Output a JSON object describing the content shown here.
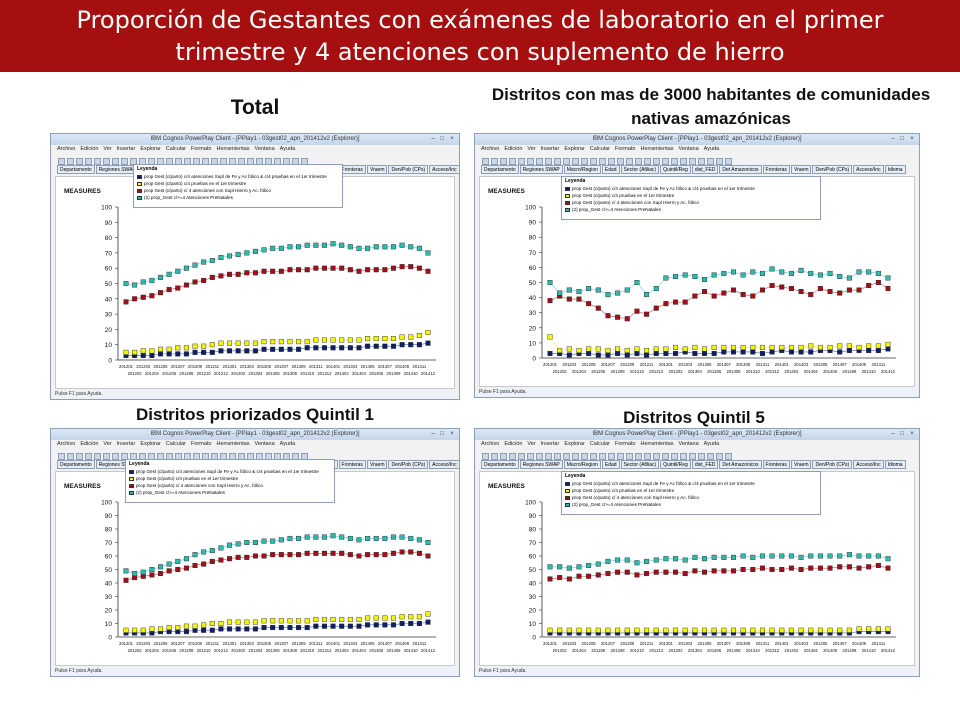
{
  "header": {
    "title_line1": "Proporción de Gestantes con exámenes de laboratorio en el primer",
    "title_line2": "trimestre y 4 atenciones con suplemento de hierro"
  },
  "colors": {
    "banner": "#a50f0f",
    "s1": "#0d1f66",
    "s2": "#f2f20d",
    "s3": "#a01018",
    "s4": "#2eb8ae"
  },
  "window": {
    "app_title": "IBM Cognos PowerPlay Client - [PPlay1 - 03gest02_apn_201412v2 (Explorer)]",
    "menu": [
      "Archivo",
      "Edición",
      "Ver",
      "Insertar",
      "Explorar",
      "Calcular",
      "Formato",
      "Herramientas",
      "Ventana",
      "Ayuda"
    ],
    "tabs": [
      "Departamento",
      "Regiones SWAP",
      "Macro/Region",
      "Edad",
      "Sector (Afiliac)",
      "Quintil/Reg",
      "dist_FED",
      "Det Amazonicos",
      "Fronteras",
      "Vraem",
      "Den/Pob (CPs)",
      "Acceso/Inc",
      "Idioma"
    ],
    "status": "Pulse F1 para Ayuda.",
    "measures_label": "MEASURES",
    "legend_title": "Leyenda",
    "legend_items": [
      "prop Gest (c/parto) c/4 atenciones Supl de Fe y Ac fólico & c/4 pruebas en el 1er trimestre",
      "prop Gest (c/parto) c/4 pruebas en el 1er trimestre",
      "prop Gest (c/parto) c/ 4 atenciones con Supl Hierro y Ac. fólico",
      "(2) prop_Gest c/>=4 Atenciones PreNatales"
    ],
    "legend_icons": [
      "square-navy-icon",
      "square-yellow-icon",
      "square-red-icon",
      "square-teal-icon"
    ]
  },
  "panels": [
    {
      "title": "Total",
      "legend_visible": "partial"
    },
    {
      "title": "Distritos con mas de 3000 habitantes de comunidades nativas amazónicas",
      "legend_visible": "full"
    },
    {
      "title": "Distritos priorizados Quintil 1",
      "legend_visible": "partial"
    },
    {
      "title": "Distritos Quintil 5",
      "legend_visible": "full"
    }
  ],
  "chart_data": [
    {
      "type": "scatter",
      "title": "Total",
      "ylabel": "MEASURES",
      "ylim": [
        0,
        100
      ],
      "yticks": [
        0,
        10,
        20,
        30,
        40,
        50,
        60,
        70,
        80,
        90,
        100
      ],
      "x": [
        "201201",
        "201202",
        "201203",
        "201204",
        "201205",
        "201206",
        "201207",
        "201208",
        "201209",
        "201210",
        "201211",
        "201212",
        "201301",
        "201302",
        "201303",
        "201304",
        "201305",
        "201306",
        "201307",
        "201308",
        "201309",
        "201310",
        "201311",
        "201312",
        "201401",
        "201402",
        "201403",
        "201404",
        "201405",
        "201406",
        "201407",
        "201408",
        "201409",
        "201410",
        "201411",
        "201412"
      ],
      "series": [
        {
          "values": [
            3,
            3,
            3,
            3,
            4,
            4,
            4,
            4,
            5,
            5,
            5,
            6,
            6,
            6,
            6,
            6,
            7,
            7,
            7,
            7,
            7,
            8,
            8,
            8,
            8,
            8,
            8,
            8,
            9,
            9,
            9,
            9,
            10,
            10,
            10,
            11
          ]
        },
        {
          "values": [
            5,
            5,
            6,
            6,
            7,
            7,
            8,
            8,
            9,
            9,
            10,
            11,
            11,
            11,
            11,
            11,
            12,
            12,
            12,
            12,
            12,
            12,
            13,
            13,
            13,
            13,
            13,
            13,
            14,
            14,
            14,
            14,
            15,
            15,
            16,
            18
          ]
        },
        {
          "values": [
            38,
            40,
            41,
            42,
            44,
            46,
            47,
            49,
            51,
            52,
            54,
            55,
            56,
            56,
            57,
            57,
            58,
            58,
            58,
            59,
            59,
            59,
            60,
            60,
            60,
            60,
            59,
            58,
            59,
            59,
            59,
            60,
            61,
            61,
            60,
            58
          ]
        },
        {
          "values": [
            50,
            49,
            51,
            52,
            54,
            56,
            58,
            60,
            62,
            64,
            65,
            67,
            68,
            69,
            70,
            71,
            72,
            73,
            73,
            74,
            74,
            75,
            75,
            75,
            76,
            75,
            74,
            73,
            73,
            74,
            74,
            74,
            75,
            74,
            73,
            70
          ]
        }
      ]
    },
    {
      "type": "scatter",
      "title": "Distritos con mas de 3000 habitantes de comunidades nativas amazónicas",
      "ylabel": "MEASURES",
      "ylim": [
        0,
        100
      ],
      "yticks": [
        0,
        10,
        20,
        30,
        40,
        50,
        60,
        70,
        80,
        90,
        100
      ],
      "x": [
        "201201",
        "201202",
        "201203",
        "201204",
        "201205",
        "201206",
        "201207",
        "201208",
        "201209",
        "201210",
        "201211",
        "201212",
        "201301",
        "201302",
        "201303",
        "201304",
        "201305",
        "201306",
        "201307",
        "201308",
        "201309",
        "201310",
        "201311",
        "201312",
        "201401",
        "201402",
        "201403",
        "201404",
        "201405",
        "201406",
        "201407",
        "201408",
        "201409",
        "201410",
        "201411",
        "201412"
      ],
      "series": [
        {
          "values": [
            3,
            3,
            2,
            3,
            3,
            2,
            2,
            3,
            2,
            3,
            2,
            3,
            3,
            3,
            4,
            3,
            3,
            3,
            4,
            4,
            4,
            4,
            3,
            4,
            5,
            4,
            4,
            4,
            5,
            5,
            4,
            5,
            5,
            5,
            5,
            6
          ]
        },
        {
          "values": [
            14,
            5,
            6,
            5,
            6,
            6,
            5,
            6,
            5,
            6,
            5,
            6,
            6,
            7,
            6,
            7,
            6,
            7,
            7,
            7,
            7,
            7,
            7,
            7,
            7,
            7,
            7,
            8,
            7,
            7,
            8,
            8,
            7,
            8,
            8,
            9
          ]
        },
        {
          "values": [
            38,
            41,
            39,
            39,
            36,
            33,
            28,
            27,
            26,
            31,
            29,
            33,
            36,
            37,
            37,
            41,
            44,
            41,
            43,
            45,
            42,
            41,
            45,
            48,
            47,
            46,
            44,
            42,
            46,
            44,
            43,
            45,
            45,
            48,
            50,
            46
          ]
        },
        {
          "values": [
            50,
            43,
            45,
            44,
            46,
            45,
            42,
            43,
            45,
            50,
            42,
            46,
            53,
            54,
            55,
            54,
            52,
            55,
            56,
            57,
            55,
            57,
            56,
            59,
            57,
            56,
            58,
            56,
            55,
            56,
            54,
            53,
            57,
            57,
            56,
            53
          ]
        }
      ]
    },
    {
      "type": "scatter",
      "title": "Distritos priorizados Quintil 1",
      "ylabel": "MEASURES",
      "ylim": [
        0,
        100
      ],
      "yticks": [
        0,
        10,
        20,
        30,
        40,
        50,
        60,
        70,
        80,
        90,
        100
      ],
      "x": [
        "201201",
        "201202",
        "201203",
        "201204",
        "201205",
        "201206",
        "201207",
        "201208",
        "201209",
        "201210",
        "201211",
        "201212",
        "201301",
        "201302",
        "201303",
        "201304",
        "201305",
        "201306",
        "201307",
        "201308",
        "201309",
        "201310",
        "201311",
        "201312",
        "201401",
        "201402",
        "201403",
        "201404",
        "201405",
        "201406",
        "201407",
        "201408",
        "201409",
        "201410",
        "201411",
        "201412"
      ],
      "series": [
        {
          "values": [
            3,
            3,
            3,
            3,
            4,
            4,
            4,
            4,
            5,
            5,
            5,
            6,
            6,
            6,
            6,
            6,
            7,
            7,
            7,
            7,
            7,
            7,
            8,
            8,
            8,
            8,
            8,
            8,
            9,
            9,
            9,
            9,
            10,
            10,
            10,
            11
          ]
        },
        {
          "values": [
            5,
            5,
            5,
            6,
            6,
            7,
            7,
            8,
            8,
            9,
            10,
            10,
            11,
            11,
            11,
            11,
            12,
            12,
            12,
            12,
            12,
            12,
            13,
            13,
            13,
            13,
            13,
            13,
            14,
            14,
            14,
            14,
            15,
            15,
            15,
            17
          ]
        },
        {
          "values": [
            42,
            44,
            45,
            46,
            47,
            49,
            50,
            51,
            53,
            54,
            56,
            57,
            58,
            59,
            59,
            60,
            60,
            61,
            61,
            61,
            61,
            62,
            62,
            62,
            62,
            62,
            61,
            60,
            61,
            61,
            61,
            62,
            63,
            63,
            62,
            60
          ]
        },
        {
          "values": [
            49,
            47,
            48,
            50,
            52,
            54,
            56,
            58,
            61,
            63,
            64,
            66,
            68,
            69,
            70,
            70,
            71,
            71,
            72,
            73,
            73,
            74,
            74,
            74,
            75,
            74,
            73,
            72,
            73,
            73,
            73,
            74,
            74,
            73,
            72,
            70
          ]
        }
      ]
    },
    {
      "type": "scatter",
      "title": "Distritos Quintil 5",
      "ylabel": "MEASURES",
      "ylim": [
        0,
        100
      ],
      "yticks": [
        0,
        10,
        20,
        30,
        40,
        50,
        60,
        70,
        80,
        90,
        100
      ],
      "x": [
        "201201",
        "201202",
        "201203",
        "201204",
        "201205",
        "201206",
        "201207",
        "201208",
        "201209",
        "201210",
        "201211",
        "201212",
        "201301",
        "201302",
        "201303",
        "201304",
        "201305",
        "201306",
        "201307",
        "201308",
        "201309",
        "201310",
        "201311",
        "201312",
        "201401",
        "201402",
        "201403",
        "201404",
        "201405",
        "201406",
        "201407",
        "201408",
        "201409",
        "201410",
        "201411",
        "201412"
      ],
      "series": [
        {
          "values": [
            3,
            3,
            3,
            3,
            3,
            3,
            3,
            3,
            3,
            3,
            3,
            3,
            3,
            3,
            3,
            3,
            3,
            3,
            3,
            3,
            3,
            3,
            3,
            3,
            3,
            3,
            3,
            3,
            3,
            3,
            3,
            3,
            4,
            4,
            4,
            4
          ]
        },
        {
          "values": [
            5,
            5,
            5,
            5,
            5,
            5,
            5,
            5,
            5,
            5,
            5,
            5,
            5,
            5,
            5,
            5,
            5,
            5,
            5,
            5,
            5,
            5,
            5,
            5,
            5,
            5,
            5,
            5,
            5,
            5,
            5,
            5,
            6,
            6,
            6,
            6
          ]
        },
        {
          "values": [
            43,
            44,
            43,
            45,
            45,
            46,
            47,
            48,
            48,
            46,
            47,
            48,
            48,
            48,
            47,
            49,
            48,
            49,
            49,
            49,
            50,
            50,
            51,
            50,
            50,
            51,
            50,
            51,
            51,
            51,
            52,
            52,
            51,
            52,
            53,
            51
          ]
        },
        {
          "values": [
            52,
            52,
            51,
            52,
            53,
            54,
            56,
            57,
            57,
            55,
            56,
            57,
            58,
            58,
            57,
            59,
            58,
            59,
            59,
            59,
            60,
            59,
            60,
            60,
            60,
            60,
            59,
            60,
            60,
            60,
            60,
            61,
            60,
            60,
            60,
            58
          ]
        }
      ]
    }
  ]
}
